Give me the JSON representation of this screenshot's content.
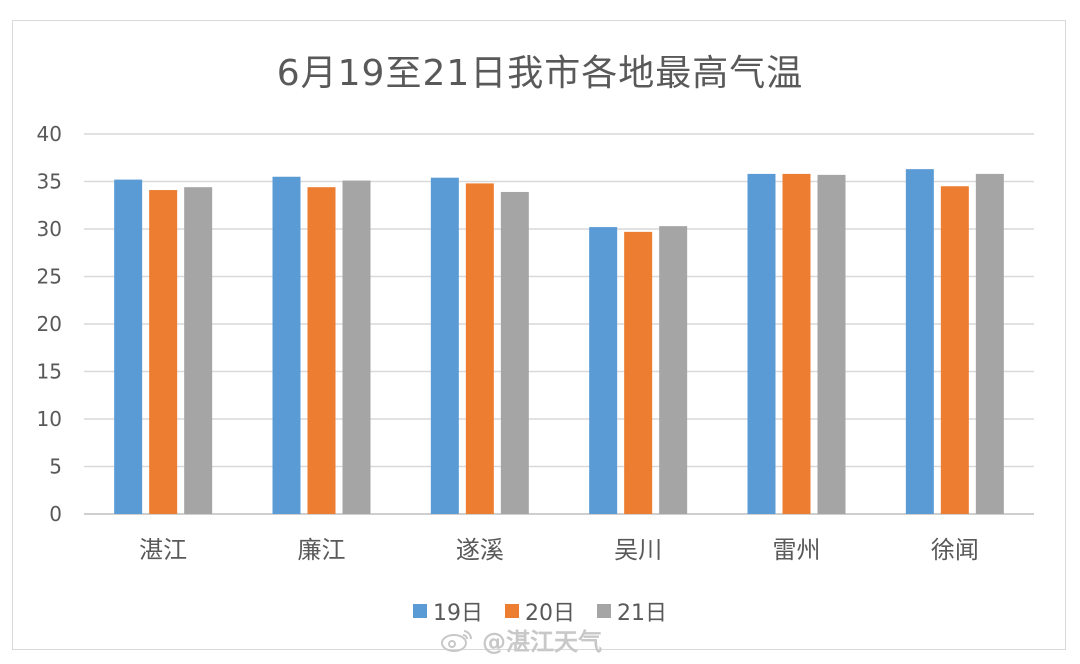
{
  "chart_data": {
    "type": "bar",
    "title": "6月19至21日我市各地最高气温",
    "categories": [
      "湛江",
      "廉江",
      "遂溪",
      "吴川",
      "雷州",
      "徐闻"
    ],
    "series": [
      {
        "name": "19日",
        "color": "#5b9bd5",
        "values": [
          35.2,
          35.5,
          35.4,
          30.2,
          35.8,
          36.3
        ]
      },
      {
        "name": "20日",
        "color": "#ed7d31",
        "values": [
          34.1,
          34.4,
          34.8,
          29.7,
          35.8,
          34.5
        ]
      },
      {
        "name": "21日",
        "color": "#a5a5a5",
        "values": [
          34.4,
          35.1,
          33.9,
          30.3,
          35.7,
          35.8
        ]
      }
    ],
    "ylim": [
      0,
      40
    ],
    "yticks": [
      0,
      5,
      10,
      15,
      20,
      25,
      30,
      35,
      40
    ],
    "grid": true,
    "legend_position": "bottom"
  },
  "watermark": {
    "icon": "weibo-icon",
    "text": "@湛江天气"
  }
}
